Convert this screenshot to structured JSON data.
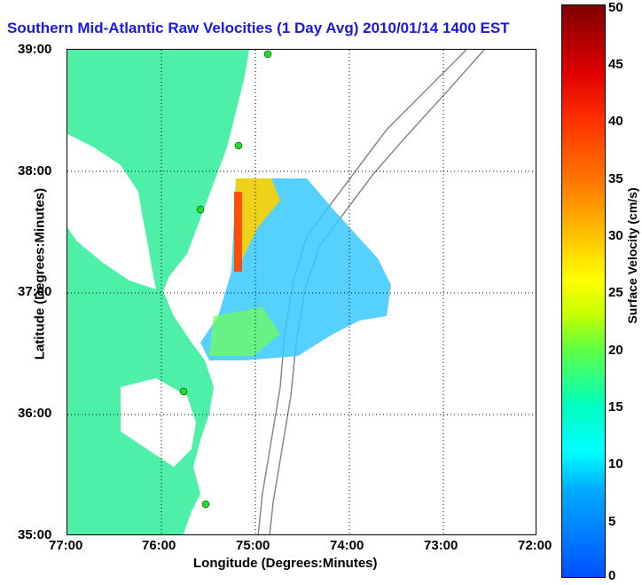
{
  "title": "Southern Mid-Atlantic Raw Velocities (1 Day Avg) 2010/01/14 1400 EST",
  "x_axis": {
    "label": "Longitude (Degrees:Minutes)",
    "ticks": [
      "77:00",
      "76:00",
      "75:00",
      "74:00",
      "73:00",
      "72:00"
    ]
  },
  "y_axis": {
    "label": "Latitude (Degrees:Minutes)",
    "ticks": [
      "39:00",
      "38:00",
      "37:00",
      "36:00",
      "35:00"
    ]
  },
  "colorbar": {
    "label": "Surface Velocity (cm/s)",
    "ticks": [
      "50",
      "45",
      "40",
      "35",
      "30",
      "25",
      "20",
      "15",
      "10",
      "5",
      "0"
    ]
  },
  "colors": {
    "title": "#1a1adc",
    "land": "#4ef0a8",
    "contour": "#888888",
    "station": "#22dd22"
  }
}
